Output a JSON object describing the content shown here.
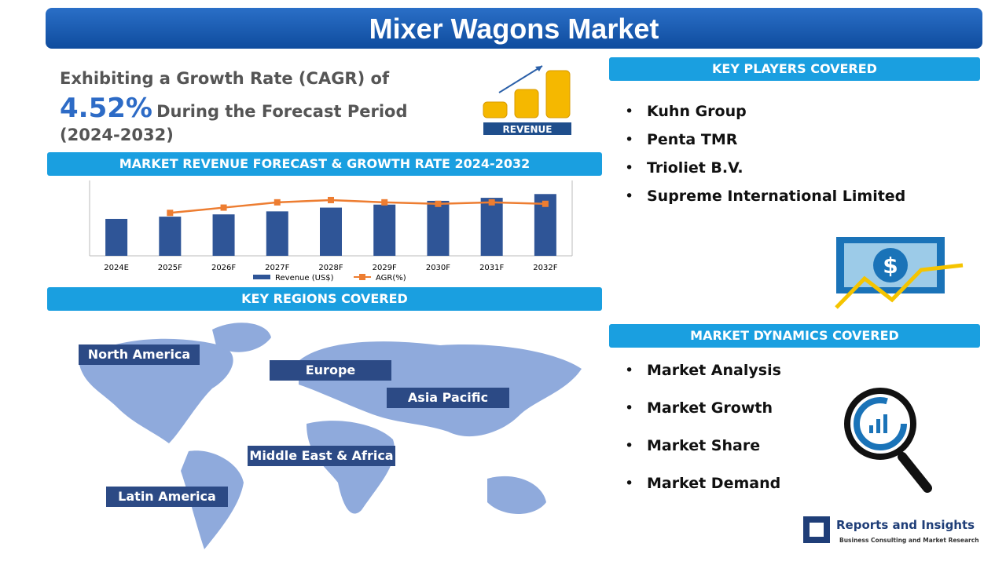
{
  "header": {
    "title": "Mixer Wagons Market"
  },
  "cagr": {
    "intro": "Exhibiting a Growth Rate (CAGR) of",
    "value": "4.52%",
    "text": "During the Forecast Period",
    "period": "(2024-2032)",
    "icon_label": "REVENUE"
  },
  "sections": {
    "forecast": "MARKET REVENUE FORECAST & GROWTH RATE 2024-2032",
    "regions": "KEY REGIONS COVERED",
    "players": "KEY PLAYERS COVERED",
    "dynamics": "MARKET DYNAMICS COVERED"
  },
  "players": [
    "Kuhn Group",
    "Penta TMR",
    "Trioliet B.V.",
    "Supreme International Limited"
  ],
  "regions": [
    "North America",
    "Europe",
    "Asia Pacific",
    "Middle East & Africa",
    "Latin America"
  ],
  "dynamics": [
    "Market Analysis",
    "Market Growth",
    "Market Share",
    "Market Demand"
  ],
  "logo": {
    "name": "Reports and Insights",
    "tagline": "Business Consulting and Market Research"
  },
  "chart_data": {
    "type": "bar",
    "categories": [
      "2024E",
      "2025F",
      "2026F",
      "2027F",
      "2028F",
      "2029F",
      "2030F",
      "2031F",
      "2032F"
    ],
    "ylim": [
      0,
      100
    ],
    "y2lim": [
      0,
      100
    ],
    "series": [
      {
        "name": "Revenue (US$)",
        "color": "#2f5597",
        "values": [
          49,
          52,
          55,
          59,
          64,
          68,
          73,
          77,
          82
        ]
      },
      {
        "name": "AGR(%)",
        "color": "#ed7d31",
        "type": "line",
        "axis": "y2",
        "values": [
          null,
          57,
          64,
          71,
          74,
          71,
          69,
          71,
          69
        ]
      }
    ]
  }
}
